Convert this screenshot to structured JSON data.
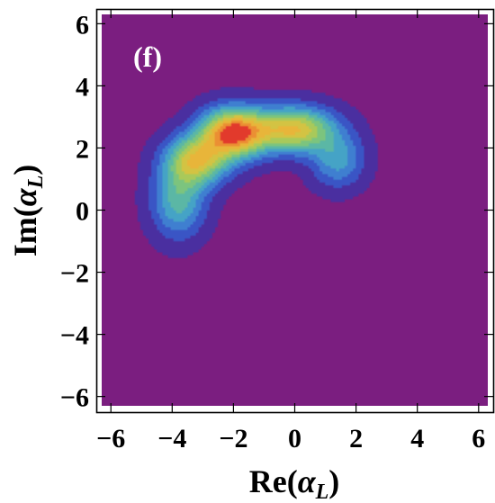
{
  "panel_label": "(f)",
  "chart_data": {
    "type": "contour",
    "xlabel": "Re(α_L)",
    "ylabel": "Im(α_L)",
    "xlabel_main": "Re(",
    "xlabel_sym": "α",
    "xlabel_sub": "L",
    "xlabel_close": ")",
    "ylabel_main": "Im(",
    "ylabel_sym": "α",
    "ylabel_sub": "L",
    "ylabel_close": ")",
    "xlim": [
      -6.3,
      6.3
    ],
    "ylim": [
      -6.3,
      6.3
    ],
    "xticks": [
      -6,
      -4,
      -2,
      0,
      2,
      4,
      6
    ],
    "yticks": [
      -6,
      -4,
      -2,
      0,
      2,
      4,
      6
    ],
    "xtick_labels": [
      "−6",
      "−4",
      "−2",
      "0",
      "2",
      "4",
      "6"
    ],
    "ytick_labels": [
      "−6",
      "−4",
      "−2",
      "0",
      "2",
      "4",
      "6"
    ],
    "background_color": "#7b1e80",
    "contour_levels": 11,
    "level_colors": [
      "#4a2fa0",
      "#3a55c5",
      "#3f7fd0",
      "#45a3c6",
      "#5bb7a5",
      "#7cc47e",
      "#a9c95a",
      "#d3c343",
      "#e8b53a",
      "#eb8f33",
      "#e23a2c"
    ],
    "peak": {
      "x": -2.0,
      "y": 2.5
    },
    "components": [
      {
        "x": -2.0,
        "y": 2.5,
        "sx": 0.75,
        "sy": 0.55,
        "amp": 1.0
      },
      {
        "x": 0.0,
        "y": 2.6,
        "sx": 0.9,
        "sy": 0.5,
        "amp": 0.78
      },
      {
        "x": -3.2,
        "y": 1.6,
        "sx": 0.7,
        "sy": 0.55,
        "amp": 0.7
      },
      {
        "x": -3.8,
        "y": 0.3,
        "sx": 0.6,
        "sy": 0.8,
        "amp": 0.45
      },
      {
        "x": 1.4,
        "y": 1.6,
        "sx": 0.6,
        "sy": 0.6,
        "amp": 0.35
      }
    ]
  }
}
